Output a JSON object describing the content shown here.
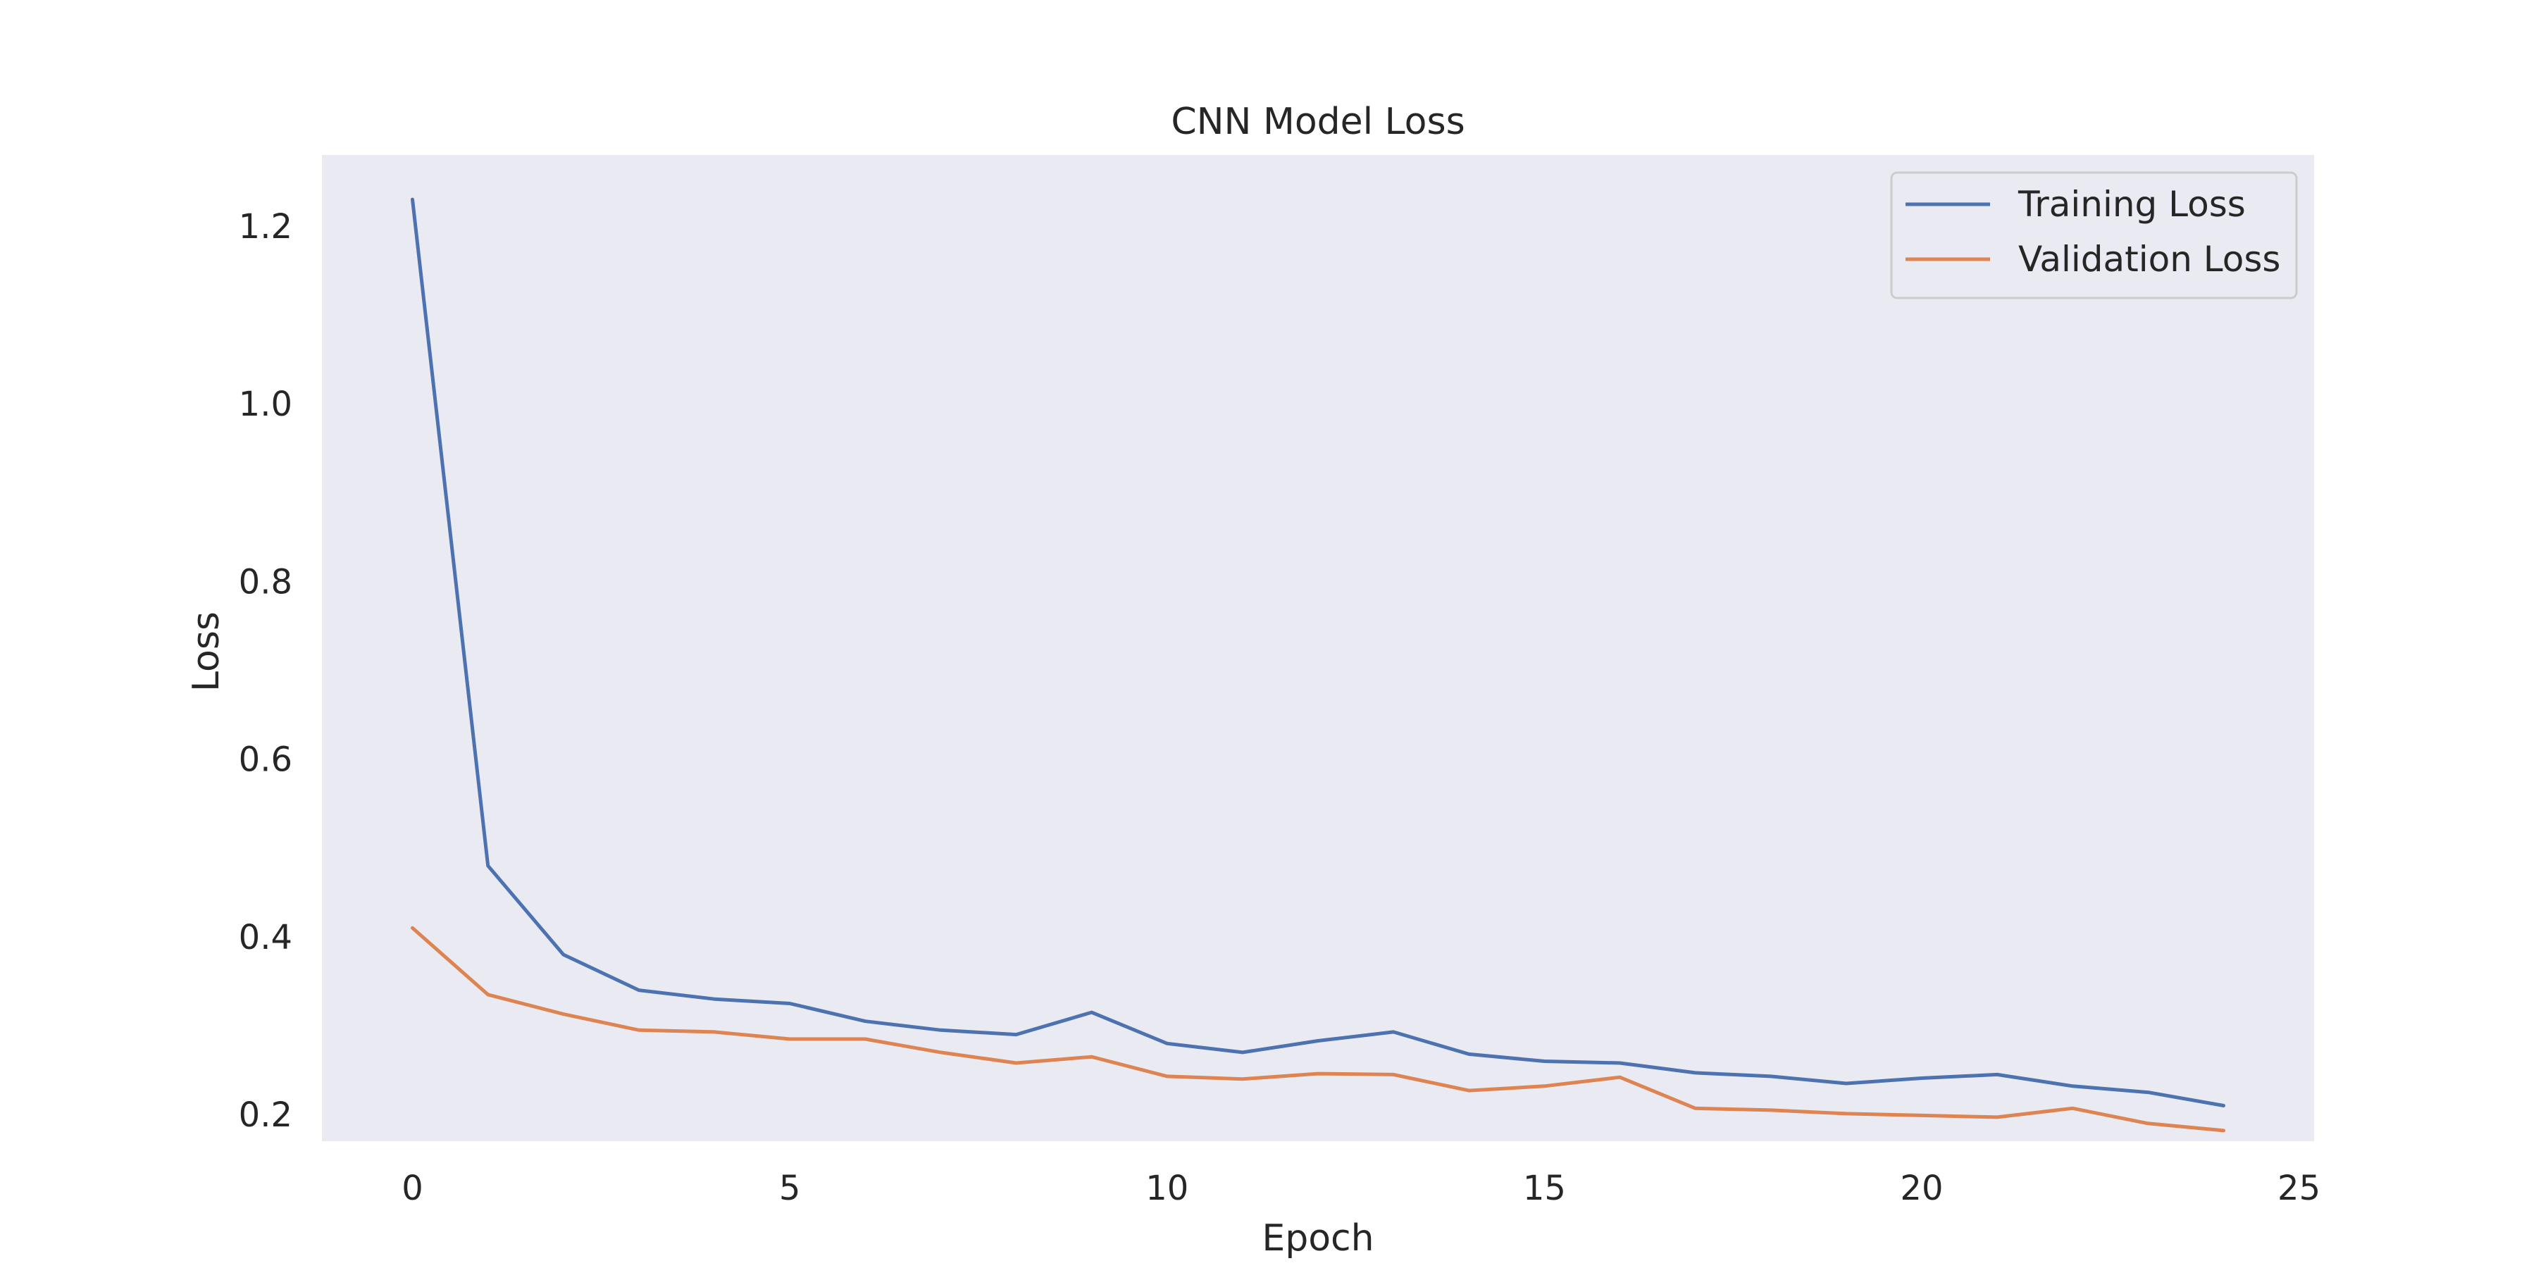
{
  "chart_data": {
    "type": "line",
    "title": "CNN Model Loss",
    "xlabel": "Epoch",
    "ylabel": "Loss",
    "xlim": [
      -1.2,
      25.2
    ],
    "ylim": [
      0.17,
      1.28
    ],
    "x_ticks": [
      0,
      5,
      10,
      15,
      20,
      25
    ],
    "y_ticks": [
      0.2,
      0.4,
      0.6,
      0.8,
      1.0,
      1.2
    ],
    "x_tick_labels": [
      "0",
      "5",
      "10",
      "15",
      "20",
      "25"
    ],
    "y_tick_labels": [
      "0.2",
      "0.4",
      "0.6",
      "0.8",
      "1.0",
      "1.2"
    ],
    "grid": false,
    "legend_position": "top-right",
    "colors": {
      "plot_background": "#eaeaf2",
      "training": "#4c72b0",
      "validation": "#dd8452",
      "legend_border": "#cccccc",
      "legend_background": "#eaeaf2"
    },
    "x": [
      0,
      1,
      2,
      3,
      4,
      5,
      6,
      7,
      8,
      9,
      10,
      11,
      12,
      13,
      14,
      15,
      16,
      17,
      18,
      19,
      20,
      21,
      22,
      23,
      24
    ],
    "series": [
      {
        "name": "Training Loss",
        "color": "#4c72b0",
        "values": [
          1.23,
          0.48,
          0.38,
          0.34,
          0.33,
          0.325,
          0.305,
          0.295,
          0.29,
          0.315,
          0.28,
          0.27,
          0.283,
          0.293,
          0.268,
          0.26,
          0.258,
          0.247,
          0.243,
          0.235,
          0.241,
          0.245,
          0.232,
          0.225,
          0.21
        ]
      },
      {
        "name": "Validation Loss",
        "color": "#dd8452",
        "values": [
          0.41,
          0.335,
          0.313,
          0.295,
          0.293,
          0.285,
          0.285,
          0.27,
          0.258,
          0.265,
          0.243,
          0.24,
          0.246,
          0.245,
          0.227,
          0.232,
          0.242,
          0.207,
          0.205,
          0.201,
          0.199,
          0.197,
          0.207,
          0.19,
          0.182
        ]
      }
    ]
  }
}
